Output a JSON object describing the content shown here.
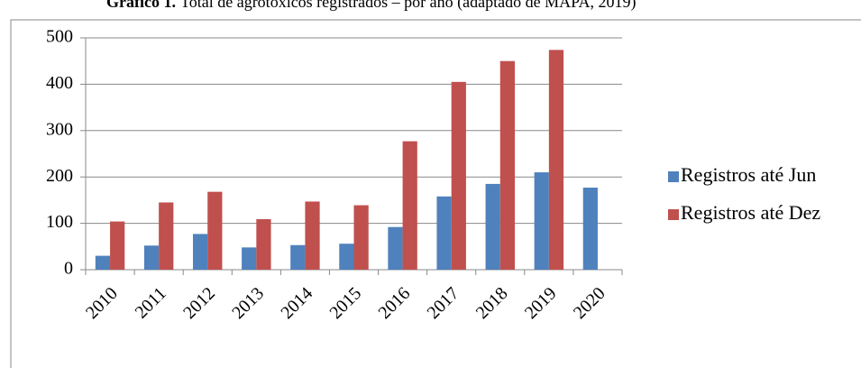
{
  "chart_data": {
    "type": "bar",
    "title": "Gráfico 1.",
    "subtitle": "Total de agrotóxicos registrados – por ano (adaptado de MAPA, 2019)",
    "categories": [
      "2010",
      "2011",
      "2012",
      "2013",
      "2014",
      "2015",
      "2016",
      "2017",
      "2018",
      "2019",
      "2020"
    ],
    "series": [
      {
        "name": "Registros até Jun",
        "color": "#4f81bd",
        "values": [
          30,
          52,
          77,
          48,
          53,
          56,
          92,
          158,
          185,
          210,
          177
        ]
      },
      {
        "name": "Registros até Dez",
        "color": "#c0504d",
        "values": [
          104,
          145,
          168,
          109,
          147,
          139,
          277,
          405,
          450,
          474,
          null
        ]
      }
    ],
    "ylim": [
      0,
      500
    ],
    "yticks": [
      0,
      100,
      200,
      300,
      400,
      500
    ],
    "grid": true,
    "legend": "right"
  }
}
